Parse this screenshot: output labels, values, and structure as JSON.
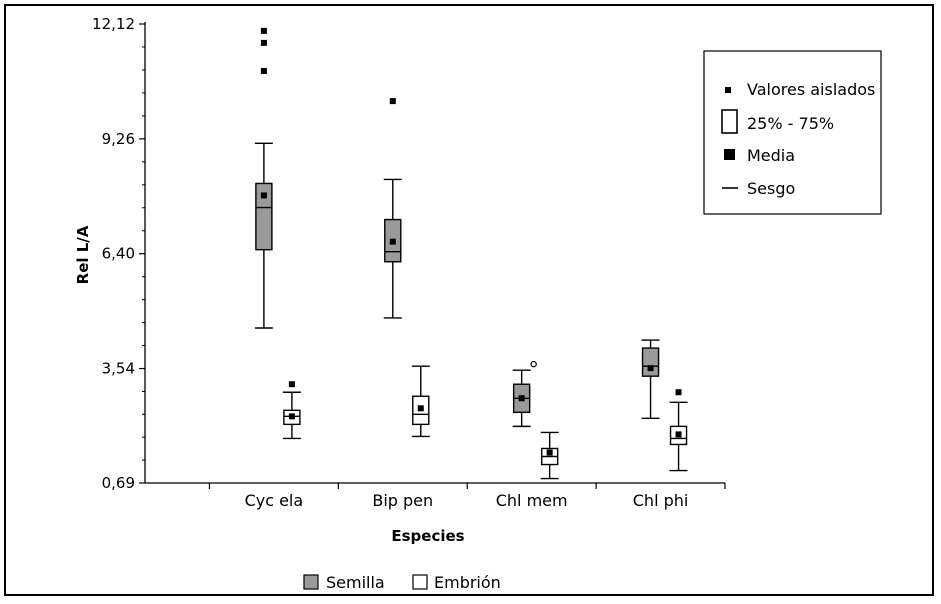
{
  "chart_data": {
    "type": "boxplot",
    "xlabel": "Especies",
    "ylabel": "Rel L/A",
    "ylim": [
      0.69,
      12.12
    ],
    "yticks": [
      "0,69",
      "3,54",
      "6,40",
      "9,26",
      "12,12"
    ],
    "ytick_values": [
      0.69,
      3.54,
      6.4,
      9.26,
      12.12
    ],
    "categories": [
      "Cyc ela",
      "Bip pen",
      "Chl mem",
      "Chl phi"
    ],
    "series": [
      {
        "name": "Semilla",
        "color": "#9a9a9a",
        "boxes": [
          {
            "category": "Cyc ela",
            "whisker_low": 4.55,
            "q1": 6.5,
            "median": 7.55,
            "q3": 8.15,
            "whisker_high": 9.15,
            "mean": 7.85,
            "outliers": [
              10.95,
              11.65,
              11.95
            ]
          },
          {
            "category": "Bip pen",
            "whisker_low": 4.8,
            "q1": 6.2,
            "median": 6.45,
            "q3": 7.25,
            "whisker_high": 8.25,
            "mean": 6.7,
            "outliers": [
              10.2
            ]
          },
          {
            "category": "Chl mem",
            "whisker_low": 2.1,
            "q1": 2.45,
            "median": 2.8,
            "q3": 3.15,
            "whisker_high": 3.5,
            "mean": 2.8,
            "outliers": [
              3.65
            ]
          },
          {
            "category": "Chl phi",
            "whisker_low": 2.3,
            "q1": 3.35,
            "median": 3.6,
            "q3": 4.05,
            "whisker_high": 4.25,
            "mean": 3.55,
            "outliers": []
          }
        ]
      },
      {
        "name": "Embrión",
        "color": "#ffffff",
        "boxes": [
          {
            "category": "Cyc ela",
            "whisker_low": 1.8,
            "q1": 2.15,
            "median": 2.35,
            "q3": 2.5,
            "whisker_high": 2.95,
            "mean": 2.35,
            "outliers": [
              3.15
            ]
          },
          {
            "category": "Bip pen",
            "whisker_low": 1.85,
            "q1": 2.15,
            "median": 2.4,
            "q3": 2.85,
            "whisker_high": 3.6,
            "mean": 2.55,
            "outliers": []
          },
          {
            "category": "Chl mem",
            "whisker_low": 0.8,
            "q1": 1.15,
            "median": 1.35,
            "q3": 1.55,
            "whisker_high": 1.95,
            "mean": 1.45,
            "outliers": []
          },
          {
            "category": "Chl phi",
            "whisker_low": 1.0,
            "q1": 1.65,
            "median": 1.8,
            "q3": 2.1,
            "whisker_high": 2.7,
            "mean": 1.9,
            "outliers": [
              2.95
            ]
          }
        ]
      }
    ],
    "legend_symbols": {
      "position": "top-right",
      "items": [
        "Valores aislados",
        "25% - 75%",
        "Media",
        "Sesgo"
      ]
    },
    "legend_series": {
      "position": "bottom-center",
      "items": [
        "Semilla",
        "Embrión"
      ]
    },
    "grid": false
  }
}
